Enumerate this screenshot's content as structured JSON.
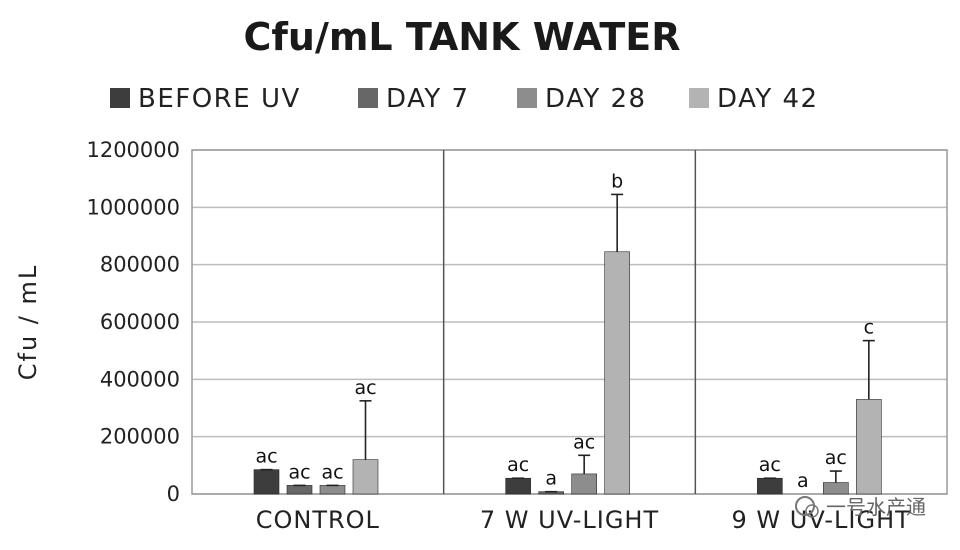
{
  "chart_data": {
    "type": "bar",
    "title": "Cfu/mL TANK WATER",
    "ylabel": "Cfu / mL",
    "xlabel": "",
    "ylim": [
      0,
      1200000
    ],
    "yticks": [
      0,
      200000,
      400000,
      600000,
      800000,
      1000000,
      1200000
    ],
    "grid": true,
    "legend_position": "top",
    "categories": [
      "CONTROL",
      "7 W UV-LIGHT",
      "9 W UV-LIGHT"
    ],
    "series": [
      {
        "name": "BEFORE UV",
        "color": "#3d3d3d",
        "values": [
          85000,
          55000,
          55000
        ],
        "errors": [
          0,
          0,
          0
        ],
        "labels": [
          "ac",
          "ac",
          "ac"
        ]
      },
      {
        "name": "DAY 7",
        "color": "#676767",
        "values": [
          30000,
          8000,
          0
        ],
        "errors": [
          0,
          0,
          0
        ],
        "labels": [
          "ac",
          "a",
          "a"
        ]
      },
      {
        "name": "DAY 28",
        "color": "#8d8d8d",
        "values": [
          30000,
          70000,
          40000
        ],
        "errors": [
          0,
          65000,
          40000
        ],
        "labels": [
          "ac",
          "ac",
          "ac"
        ]
      },
      {
        "name": "DAY 42",
        "color": "#b3b3b3",
        "values": [
          120000,
          845000,
          330000
        ],
        "errors": [
          205000,
          200000,
          205000
        ],
        "labels": [
          "ac",
          "b",
          "c"
        ]
      }
    ]
  },
  "watermark": {
    "text": "一号水产通",
    "icon": "wechat-icon"
  }
}
